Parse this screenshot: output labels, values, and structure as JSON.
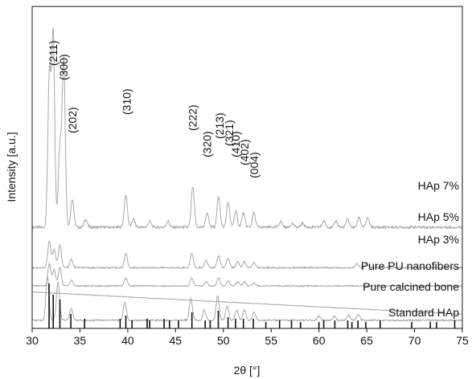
{
  "chart_data": {
    "type": "line",
    "title": "",
    "xlabel": "2θ [°]",
    "ylabel": "Intensity [a.u.]",
    "xlim": [
      30,
      75
    ],
    "x_ticks": [
      30,
      35,
      40,
      45,
      50,
      55,
      60,
      65,
      70,
      75
    ],
    "y_ticks": [],
    "grid": false,
    "legend": "none",
    "line_color": "#a8a8a8",
    "stick_color": "#111111",
    "series": [
      {
        "name": "HAp 7%",
        "baseline": 100,
        "noise": 2.5,
        "peaks": [
          {
            "x": 31.8,
            "h": 150
          },
          {
            "x": 32.2,
            "h": 190
          },
          {
            "x": 32.9,
            "h": 80
          },
          {
            "x": 33.3,
            "h": 165
          },
          {
            "x": 34.2,
            "h": 28
          },
          {
            "x": 35.6,
            "h": 8
          },
          {
            "x": 39.8,
            "h": 32
          },
          {
            "x": 40.6,
            "h": 8
          },
          {
            "x": 42.3,
            "h": 6
          },
          {
            "x": 44.2,
            "h": 6
          },
          {
            "x": 46.8,
            "h": 40
          },
          {
            "x": 48.3,
            "h": 14
          },
          {
            "x": 49.5,
            "h": 30
          },
          {
            "x": 50.5,
            "h": 25
          },
          {
            "x": 51.3,
            "h": 16
          },
          {
            "x": 52.1,
            "h": 14
          },
          {
            "x": 53.2,
            "h": 14
          },
          {
            "x": 56.0,
            "h": 6
          },
          {
            "x": 57.2,
            "h": 4
          },
          {
            "x": 58.3,
            "h": 4
          },
          {
            "x": 60.5,
            "h": 6
          },
          {
            "x": 61.8,
            "h": 6
          },
          {
            "x": 63.0,
            "h": 8
          },
          {
            "x": 64.2,
            "h": 10
          },
          {
            "x": 65.1,
            "h": 9
          }
        ]
      },
      {
        "name": "HAp 5%",
        "baseline": 60,
        "noise": 1.5,
        "peaks": [
          {
            "x": 31.8,
            "h": 26
          },
          {
            "x": 32.3,
            "h": 18
          },
          {
            "x": 32.9,
            "h": 22
          },
          {
            "x": 34.1,
            "h": 8
          },
          {
            "x": 39.8,
            "h": 14
          },
          {
            "x": 46.7,
            "h": 14
          },
          {
            "x": 48.2,
            "h": 7
          },
          {
            "x": 49.5,
            "h": 12
          },
          {
            "x": 50.5,
            "h": 9
          },
          {
            "x": 51.5,
            "h": 6
          },
          {
            "x": 52.2,
            "h": 6
          },
          {
            "x": 53.2,
            "h": 5
          },
          {
            "x": 64.0,
            "h": 4
          },
          {
            "x": 65.0,
            "h": 4
          }
        ]
      },
      {
        "name": "HAp 3%",
        "baseline": 42,
        "noise": 1.2,
        "peaks": [
          {
            "x": 31.8,
            "h": 22
          },
          {
            "x": 32.3,
            "h": 16
          },
          {
            "x": 32.9,
            "h": 18
          },
          {
            "x": 34.1,
            "h": 6
          },
          {
            "x": 39.8,
            "h": 8
          },
          {
            "x": 46.7,
            "h": 8
          },
          {
            "x": 48.2,
            "h": 4
          },
          {
            "x": 49.5,
            "h": 8
          },
          {
            "x": 50.5,
            "h": 5
          },
          {
            "x": 51.5,
            "h": 4
          },
          {
            "x": 52.2,
            "h": 4
          },
          {
            "x": 53.2,
            "h": 3
          }
        ]
      },
      {
        "name": "Pure PU nanofibers",
        "baseline_start": 36,
        "baseline_end": 14,
        "noise": 0.5,
        "peaks": []
      },
      {
        "name": "Pure calcined bone",
        "baseline": 8,
        "noise": 1.5,
        "peaks": [
          {
            "x": 31.6,
            "h": 44
          },
          {
            "x": 32.7,
            "h": 38
          },
          {
            "x": 34.1,
            "h": 12
          },
          {
            "x": 39.7,
            "h": 18
          },
          {
            "x": 46.6,
            "h": 22
          },
          {
            "x": 48.0,
            "h": 10
          },
          {
            "x": 49.4,
            "h": 24
          },
          {
            "x": 50.4,
            "h": 14
          },
          {
            "x": 51.4,
            "h": 10
          },
          {
            "x": 52.2,
            "h": 10
          },
          {
            "x": 53.2,
            "h": 8
          },
          {
            "x": 60.0,
            "h": 4
          },
          {
            "x": 61.6,
            "h": 4
          },
          {
            "x": 63.1,
            "h": 5
          },
          {
            "x": 64.1,
            "h": 6
          }
        ]
      }
    ],
    "standard_sticks": {
      "name": "Standard HAp",
      "x": [
        31.77,
        32.2,
        32.9,
        34.05,
        35.48,
        39.2,
        39.8,
        40.45,
        42.03,
        42.3,
        43.8,
        44.37,
        45.3,
        46.71,
        48.1,
        48.62,
        49.47,
        50.49,
        51.28,
        52.1,
        53.14,
        54.44,
        55.88,
        57.13,
        58.07,
        60.0,
        60.5,
        61.66,
        63.01,
        63.45,
        64.08,
        64.9,
        66.4,
        69.7,
        71.65,
        72.3,
        74.2
      ],
      "h": [
        56,
        42,
        36,
        18,
        12,
        12,
        16,
        10,
        12,
        10,
        12,
        10,
        10,
        20,
        10,
        10,
        22,
        14,
        12,
        12,
        12,
        8,
        10,
        10,
        8,
        8,
        10,
        10,
        10,
        8,
        10,
        8,
        10,
        8,
        8,
        8,
        10
      ]
    },
    "annotations": [
      {
        "text": "(211)",
        "x": 32.2
      },
      {
        "text": "(300)",
        "x": 33.3
      },
      {
        "text": "(202)",
        "x": 34.2
      },
      {
        "text": "(310)",
        "x": 39.9
      },
      {
        "text": "(222)",
        "x": 46.8
      },
      {
        "text": "(320)",
        "x": 48.3
      },
      {
        "text": "(213)",
        "x": 49.6
      },
      {
        "text": "(321)",
        "x": 50.6
      },
      {
        "text": "(410)",
        "x": 51.3
      },
      {
        "text": "(402)",
        "x": 52.2
      },
      {
        "text": "(004)",
        "x": 53.2
      }
    ]
  }
}
